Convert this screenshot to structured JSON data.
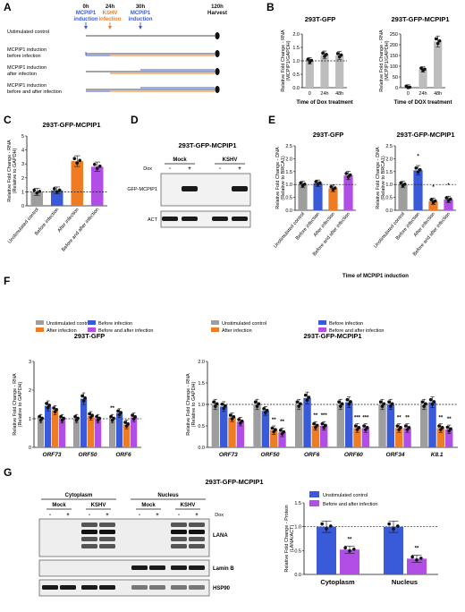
{
  "labels": {
    "A": "A",
    "B": "B",
    "C": "C",
    "D": "D",
    "E": "E",
    "F": "F",
    "G": "G"
  },
  "panel_a": {
    "timepoints": [
      {
        "t": "0h",
        "l1": "MCPIP1",
        "l2": "induction",
        "color": "#3a5bd9"
      },
      {
        "t": "24h",
        "l1": "KSHV",
        "l2": "infection",
        "color": "#ef7b22"
      },
      {
        "t": "30h",
        "l1": "MCPIP1",
        "l2": "induction",
        "color": "#3a5bd9"
      },
      {
        "t": "120h",
        "l1": "Harvest",
        "l2": "",
        "color": "#111111"
      }
    ],
    "rows": [
      {
        "l1": "Ustimulated control",
        "l2": ""
      },
      {
        "l1": "MCPIP1 induction",
        "l2": "before infection"
      },
      {
        "l1": "MCPIP1 induction",
        "l2": "after infection"
      },
      {
        "l1": "MCPIP1 induction",
        "l2": "before and after infection"
      }
    ]
  },
  "chart_data": [
    {
      "id": "B1",
      "type": "bar",
      "title": "293T-GFP",
      "ylabel": "Relative Fold Change - RNA",
      "ylabel2": "(MCPIP1/GAPDH)",
      "xlabel": "Time of Dox treatment",
      "categories": [
        "0",
        "24h",
        "48h"
      ],
      "values": [
        1.0,
        1.22,
        1.2
      ],
      "ylim": [
        0,
        2.0
      ],
      "yticks": [
        "0.0",
        "0.5",
        "1.0",
        "1.5",
        "2.0"
      ],
      "color": "#bdbdbd"
    },
    {
      "id": "B2",
      "type": "bar",
      "title": "293T-GFP-MCPIP1",
      "ylabel": "Relative Fold Change - RNA",
      "ylabel2": "(MCPIP1/GAPDH)",
      "xlabel": "Time of DOX treatment",
      "categories": [
        "0",
        "24h",
        "48h"
      ],
      "values": [
        1.0,
        85,
        215
      ],
      "ylim": [
        0,
        250
      ],
      "yticks": [
        "0",
        "50",
        "100",
        "150",
        "200",
        "250"
      ],
      "color": "#bdbdbd"
    },
    {
      "id": "C",
      "type": "bar",
      "title": "293T-GFP-MCPIP1",
      "ylabel": "Relative Fold Change - RNA",
      "ylabel2": "(Relative to GAPDH)",
      "categories": [
        "Unstimulated control",
        "Before infection",
        "After infection",
        "Before and after infection"
      ],
      "values": [
        1.0,
        1.1,
        3.2,
        2.8
      ],
      "ylim": [
        0,
        5
      ],
      "yticks": [
        "0",
        "1",
        "2",
        "3",
        "4",
        "5"
      ],
      "colors": [
        "#9e9e9e",
        "#3a5bd9",
        "#ef7b22",
        "#b04ee6"
      ]
    },
    {
      "id": "E1",
      "type": "bar",
      "title": "293T-GFP",
      "ylabel": "Relative Fold Change - DNA",
      "ylabel2": "(Relative to BRCA1)",
      "categories": [
        "Unstimulated control",
        "Before infection",
        "After infection",
        "Before and after infection"
      ],
      "values": [
        1.0,
        1.05,
        0.85,
        1.35
      ],
      "ylim": [
        0,
        2.5
      ],
      "yticks": [
        "0.0",
        "0.5",
        "1.0",
        "1.5",
        "2.0",
        "2.5"
      ],
      "colors": [
        "#9e9e9e",
        "#3a5bd9",
        "#ef7b22",
        "#b04ee6"
      ],
      "stars": [
        "",
        "",
        "",
        ""
      ]
    },
    {
      "id": "E2",
      "type": "bar",
      "title": "293T-GFP-MCPIP1",
      "ylabel": "Relative Fold Change - DNA",
      "ylabel2": "(Relative to BRCA1)",
      "categories": [
        "Unstimulated control",
        "Before infection",
        "After infection",
        "Before and after infection"
      ],
      "values": [
        1.0,
        1.55,
        0.35,
        0.42
      ],
      "ylim": [
        0,
        2.5
      ],
      "yticks": [
        "0.0",
        "0.5",
        "1.0",
        "1.5",
        "2.0",
        "2.5"
      ],
      "colors": [
        "#9e9e9e",
        "#3a5bd9",
        "#ef7b22",
        "#b04ee6"
      ],
      "stars": [
        "",
        "*",
        "*",
        "*"
      ]
    },
    {
      "id": "F1",
      "type": "bar",
      "title": "293T-GFP",
      "ylabel": "Relative Fold Change - RNA",
      "ylabel2": "(Relative to GAPDH)",
      "categories": [
        "ORF73",
        "ORF50",
        "ORF6"
      ],
      "ylim": [
        0,
        3
      ],
      "yticks": [
        "0",
        "1",
        "2",
        "3"
      ],
      "series": [
        {
          "name": "Unstimulated control",
          "color": "#9e9e9e",
          "values": [
            1.0,
            1.0,
            1.0
          ]
        },
        {
          "name": "Before infection",
          "color": "#3a5bd9",
          "values": [
            1.45,
            1.7,
            1.2
          ]
        },
        {
          "name": "After infection",
          "color": "#ef7b22",
          "values": [
            1.3,
            1.1,
            0.8
          ]
        },
        {
          "name": "Before and after infection",
          "color": "#b04ee6",
          "values": [
            1.0,
            1.0,
            1.05
          ]
        }
      ],
      "stars": [
        [
          "",
          "",
          "",
          ""
        ],
        [
          "",
          "",
          "",
          ""
        ],
        [
          "**",
          "",
          "",
          ""
        ]
      ]
    },
    {
      "id": "F2",
      "type": "bar",
      "title": "293T-GFP-MCPIP1",
      "ylabel": "Relative Fold Change - RNA",
      "ylabel2": "(Relative to GAPDH)",
      "categories": [
        "ORF73",
        "ORF50",
        "ORF6",
        "ORF60",
        "ORF34",
        "K8.1"
      ],
      "ylim": [
        0,
        2.0
      ],
      "yticks": [
        "0.0",
        "0.5",
        "1.0",
        "1.5",
        "2.0"
      ],
      "series": [
        {
          "name": "Unstimulated control",
          "color": "#9e9e9e",
          "values": [
            1.0,
            1.0,
            1.0,
            1.0,
            1.0,
            1.0
          ]
        },
        {
          "name": "Before infection",
          "color": "#3a5bd9",
          "values": [
            0.95,
            0.85,
            1.15,
            1.05,
            1.0,
            1.05
          ]
        },
        {
          "name": "After infection",
          "color": "#ef7b22",
          "values": [
            0.7,
            0.4,
            0.5,
            0.45,
            0.45,
            0.45
          ]
        },
        {
          "name": "Before and after infection",
          "color": "#b04ee6",
          "values": [
            0.6,
            0.35,
            0.5,
            0.45,
            0.45,
            0.42
          ]
        }
      ],
      "stars": [
        [
          "",
          "",
          "",
          ""
        ],
        [
          "",
          "",
          "**",
          "**"
        ],
        [
          "",
          "",
          "**",
          "***"
        ],
        [
          "",
          "",
          "***",
          "***"
        ],
        [
          "",
          "",
          "**",
          "**"
        ],
        [
          "",
          "",
          "**",
          "**"
        ]
      ]
    },
    {
      "id": "G",
      "type": "bar",
      "ylabel": "Relative Fold Change - Protein",
      "ylabel2": "(LANA/ACT)",
      "categories": [
        "Cytoplasm",
        "Nucleus"
      ],
      "ylim": [
        0,
        1.5
      ],
      "yticks": [
        "0.0",
        "0.5",
        "1.0",
        "1.5"
      ],
      "series": [
        {
          "name": "Unstimulated control",
          "color": "#3a5bd9",
          "values": [
            1.0,
            1.0
          ]
        },
        {
          "name": "Before and after infection",
          "color": "#b04ee6",
          "values": [
            0.52,
            0.33
          ]
        }
      ],
      "stars": [
        [
          "",
          "**"
        ],
        [
          "",
          "**"
        ]
      ]
    }
  ],
  "panel_d": {
    "title": "293T-GFP-MCPIP1",
    "groups": [
      "Mock",
      "KSHV"
    ],
    "dox_label": "Dox",
    "signs": [
      "-",
      "+",
      "-",
      "+"
    ],
    "rows": [
      "GFP-MCPIP1",
      "ACT"
    ]
  },
  "panel_e": {
    "xlabel": "Time of MCPIP1 induction"
  },
  "panel_g": {
    "title": "293T-GFP-MCPIP1",
    "groups": [
      "Cytoplasm",
      "Nucleus"
    ],
    "subgroups": [
      "Mock",
      "KSHV",
      "Mock",
      "KSHV"
    ],
    "dox_label": "Dox",
    "signs": [
      "-",
      "+",
      "-",
      "+",
      "-",
      "+",
      "-",
      "+"
    ],
    "rows": [
      "LANA",
      "Lamin B",
      "HSP90"
    ]
  }
}
